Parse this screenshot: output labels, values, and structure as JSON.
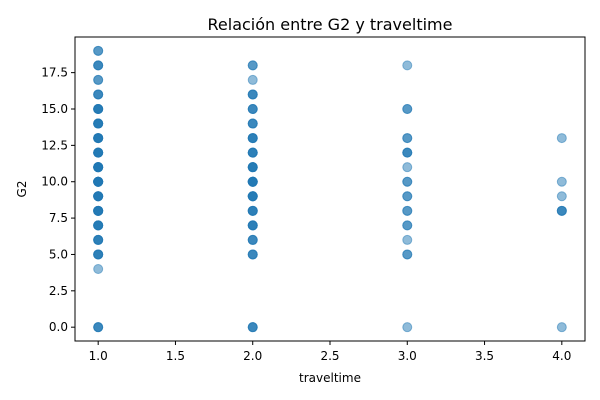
{
  "chart_data": {
    "type": "scatter",
    "title": "Relación entre G2 y traveltime",
    "xlabel": "traveltime",
    "ylabel": "G2",
    "xlim": [
      0.85,
      4.15
    ],
    "ylim": [
      -0.95,
      19.95
    ],
    "xticks": [
      1.0,
      1.5,
      2.0,
      2.5,
      3.0,
      3.5,
      4.0
    ],
    "xtick_labels": [
      "1.0",
      "1.5",
      "2.0",
      "2.5",
      "3.0",
      "3.5",
      "4.0"
    ],
    "yticks": [
      0.0,
      2.5,
      5.0,
      7.5,
      10.0,
      12.5,
      15.0,
      17.5
    ],
    "ytick_labels": [
      "0.0",
      "2.5",
      "5.0",
      "7.5",
      "10.0",
      "12.5",
      "15.0",
      "17.5"
    ],
    "marker_color": "#1f77b4",
    "marker_alpha": 0.5,
    "grid": false,
    "legend": "none",
    "points": [
      {
        "x": 1,
        "y": 0
      },
      {
        "x": 1,
        "y": 4
      },
      {
        "x": 1,
        "y": 5
      },
      {
        "x": 1,
        "y": 6
      },
      {
        "x": 1,
        "y": 7
      },
      {
        "x": 1,
        "y": 8
      },
      {
        "x": 1,
        "y": 9
      },
      {
        "x": 1,
        "y": 10
      },
      {
        "x": 1,
        "y": 11
      },
      {
        "x": 1,
        "y": 12
      },
      {
        "x": 1,
        "y": 13
      },
      {
        "x": 1,
        "y": 14
      },
      {
        "x": 1,
        "y": 15
      },
      {
        "x": 1,
        "y": 16
      },
      {
        "x": 1,
        "y": 17
      },
      {
        "x": 1,
        "y": 18
      },
      {
        "x": 1,
        "y": 19
      },
      {
        "x": 2,
        "y": 0
      },
      {
        "x": 2,
        "y": 5
      },
      {
        "x": 2,
        "y": 6
      },
      {
        "x": 2,
        "y": 7
      },
      {
        "x": 2,
        "y": 8
      },
      {
        "x": 2,
        "y": 9
      },
      {
        "x": 2,
        "y": 10
      },
      {
        "x": 2,
        "y": 11
      },
      {
        "x": 2,
        "y": 12
      },
      {
        "x": 2,
        "y": 13
      },
      {
        "x": 2,
        "y": 14
      },
      {
        "x": 2,
        "y": 15
      },
      {
        "x": 2,
        "y": 16
      },
      {
        "x": 2,
        "y": 17
      },
      {
        "x": 2,
        "y": 18
      },
      {
        "x": 3,
        "y": 0
      },
      {
        "x": 3,
        "y": 5
      },
      {
        "x": 3,
        "y": 6
      },
      {
        "x": 3,
        "y": 7
      },
      {
        "x": 3,
        "y": 8
      },
      {
        "x": 3,
        "y": 9
      },
      {
        "x": 3,
        "y": 10
      },
      {
        "x": 3,
        "y": 11
      },
      {
        "x": 3,
        "y": 12
      },
      {
        "x": 3,
        "y": 13
      },
      {
        "x": 3,
        "y": 15
      },
      {
        "x": 3,
        "y": 18
      },
      {
        "x": 4,
        "y": 0
      },
      {
        "x": 4,
        "y": 8
      },
      {
        "x": 4,
        "y": 9
      },
      {
        "x": 4,
        "y": 10
      },
      {
        "x": 4,
        "y": 13
      }
    ],
    "point_multiplicity": {
      "1": {
        "0": 3,
        "5": 4,
        "6": 4,
        "7": 5,
        "8": 6,
        "9": 6,
        "10": 8,
        "11": 8,
        "12": 6,
        "13": 6,
        "14": 5,
        "15": 5,
        "16": 3,
        "17": 2,
        "18": 3,
        "19": 2
      },
      "2": {
        "0": 3,
        "5": 3,
        "6": 3,
        "7": 4,
        "8": 4,
        "9": 5,
        "10": 6,
        "11": 5,
        "12": 4,
        "13": 4,
        "14": 3,
        "15": 3,
        "16": 3,
        "18": 2
      },
      "3": {
        "5": 2,
        "7": 2,
        "8": 2,
        "9": 2,
        "10": 2,
        "12": 3,
        "13": 2,
        "15": 2
      },
      "4": {
        "8": 3
      }
    }
  }
}
